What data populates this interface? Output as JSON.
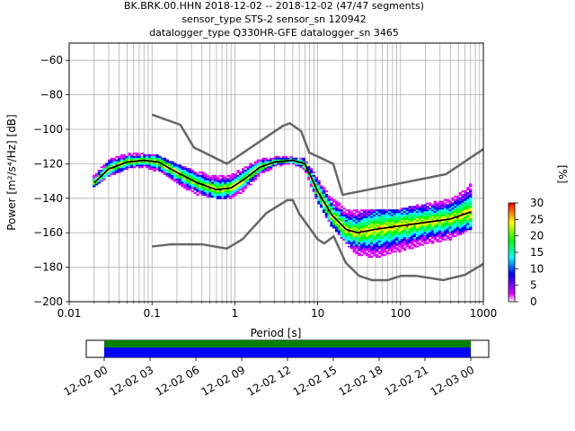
{
  "header": {
    "line1": "BK.BRK.00.HHN   2018-12-02 -- 2018-12-02  (47/47 segments)",
    "line2": "sensor_type STS-2 sensor_sn 120942",
    "line3": "datalogger_type Q330HR-GFE datalogger_sn 3465"
  },
  "colorbar": {
    "label": "[%]",
    "ticks": [
      "0",
      "5",
      "10",
      "15",
      "20",
      "25",
      "30"
    ],
    "range": [
      0,
      30
    ],
    "colors": [
      "#ffffff",
      "#e000ff",
      "#0000ff",
      "#00ffff",
      "#00ff00",
      "#ffff00",
      "#ff0000"
    ]
  },
  "timeline": {
    "ticks": [
      "12-02 00",
      "12-02 03",
      "12-02 06",
      "12-02 09",
      "12-02 12",
      "12-02 15",
      "12-02 18",
      "12-02 21",
      "12-03 00"
    ],
    "coverage_fraction": 1.0,
    "bar_colors": [
      "#008000",
      "#0000ff"
    ]
  },
  "chart_data": {
    "type": "heatmap",
    "xlabel": "Period [s]",
    "ylabel": "Power [m²/s⁴/Hz] [dB]",
    "xscale": "log",
    "xlim": [
      0.01,
      1000
    ],
    "ylim": [
      -200,
      -50
    ],
    "x_ticks": [
      0.01,
      0.1,
      1,
      10,
      100,
      1000
    ],
    "x_tick_labels": [
      "0.01",
      "0.1",
      "1",
      "10",
      "100",
      "1000"
    ],
    "y_ticks": [
      -200,
      -180,
      -160,
      -140,
      -120,
      -100,
      -80,
      -60
    ],
    "y_tick_labels": [
      "−200",
      "−180",
      "−160",
      "−140",
      "−120",
      "−100",
      "−80",
      "−60"
    ],
    "grid": true,
    "mode_curve": {
      "period": [
        0.02,
        0.03,
        0.05,
        0.08,
        0.12,
        0.2,
        0.35,
        0.6,
        0.9,
        1.3,
        2,
        3,
        5,
        7,
        10,
        15,
        22,
        30,
        50,
        100,
        200,
        400,
        700
      ],
      "power": [
        -131,
        -123,
        -119,
        -118,
        -119,
        -125,
        -131,
        -135,
        -134,
        -129,
        -122,
        -119,
        -118,
        -120,
        -136,
        -150,
        -158,
        -160,
        -158,
        -156,
        -154,
        -152,
        -148
      ]
    },
    "density_spread": {
      "period": [
        0.02,
        0.03,
        0.05,
        0.08,
        0.12,
        0.2,
        0.35,
        0.6,
        0.9,
        1.3,
        2,
        3,
        5,
        7,
        10,
        15,
        22,
        30,
        50,
        100,
        200,
        400,
        700
      ],
      "upper": [
        -127,
        -117,
        -114,
        -114,
        -115,
        -120,
        -124,
        -127,
        -126,
        -122,
        -117,
        -116,
        -116,
        -117,
        -128,
        -140,
        -146,
        -147,
        -147,
        -146,
        -143,
        -140,
        -132
      ],
      "lower": [
        -133,
        -128,
        -123,
        -122,
        -125,
        -132,
        -138,
        -140,
        -140,
        -136,
        -127,
        -122,
        -120,
        -124,
        -142,
        -157,
        -166,
        -173,
        -175,
        -171,
        -167,
        -164,
        -158
      ]
    },
    "noise_models": [
      {
        "period": [
          0.1,
          0.22,
          0.32,
          0.8,
          3.8,
          4.6,
          6.3,
          7.9,
          15.4,
          20,
          354.8,
          1000
        ],
        "power": [
          -91.5,
          -97.4,
          -110.5,
          -120,
          -98,
          -96.5,
          -101,
          -113.5,
          -120,
          -138,
          -126,
          -111.5
        ]
      },
      {
        "period": [
          0.1,
          0.17,
          0.4,
          0.8,
          1.24,
          2.4,
          4.3,
          5,
          6,
          10,
          12,
          15.6,
          21.9,
          31.6,
          45,
          70,
          101,
          154,
          328,
          600,
          1000
        ],
        "power": [
          -168,
          -166.7,
          -166.7,
          -169.2,
          -163.7,
          -148.6,
          -141.1,
          -141.1,
          -149,
          -163.8,
          -166.2,
          -162.1,
          -177.5,
          -185,
          -187.5,
          -187.5,
          -185,
          -185,
          -187.5,
          -184.4,
          -178
        ]
      }
    ]
  }
}
